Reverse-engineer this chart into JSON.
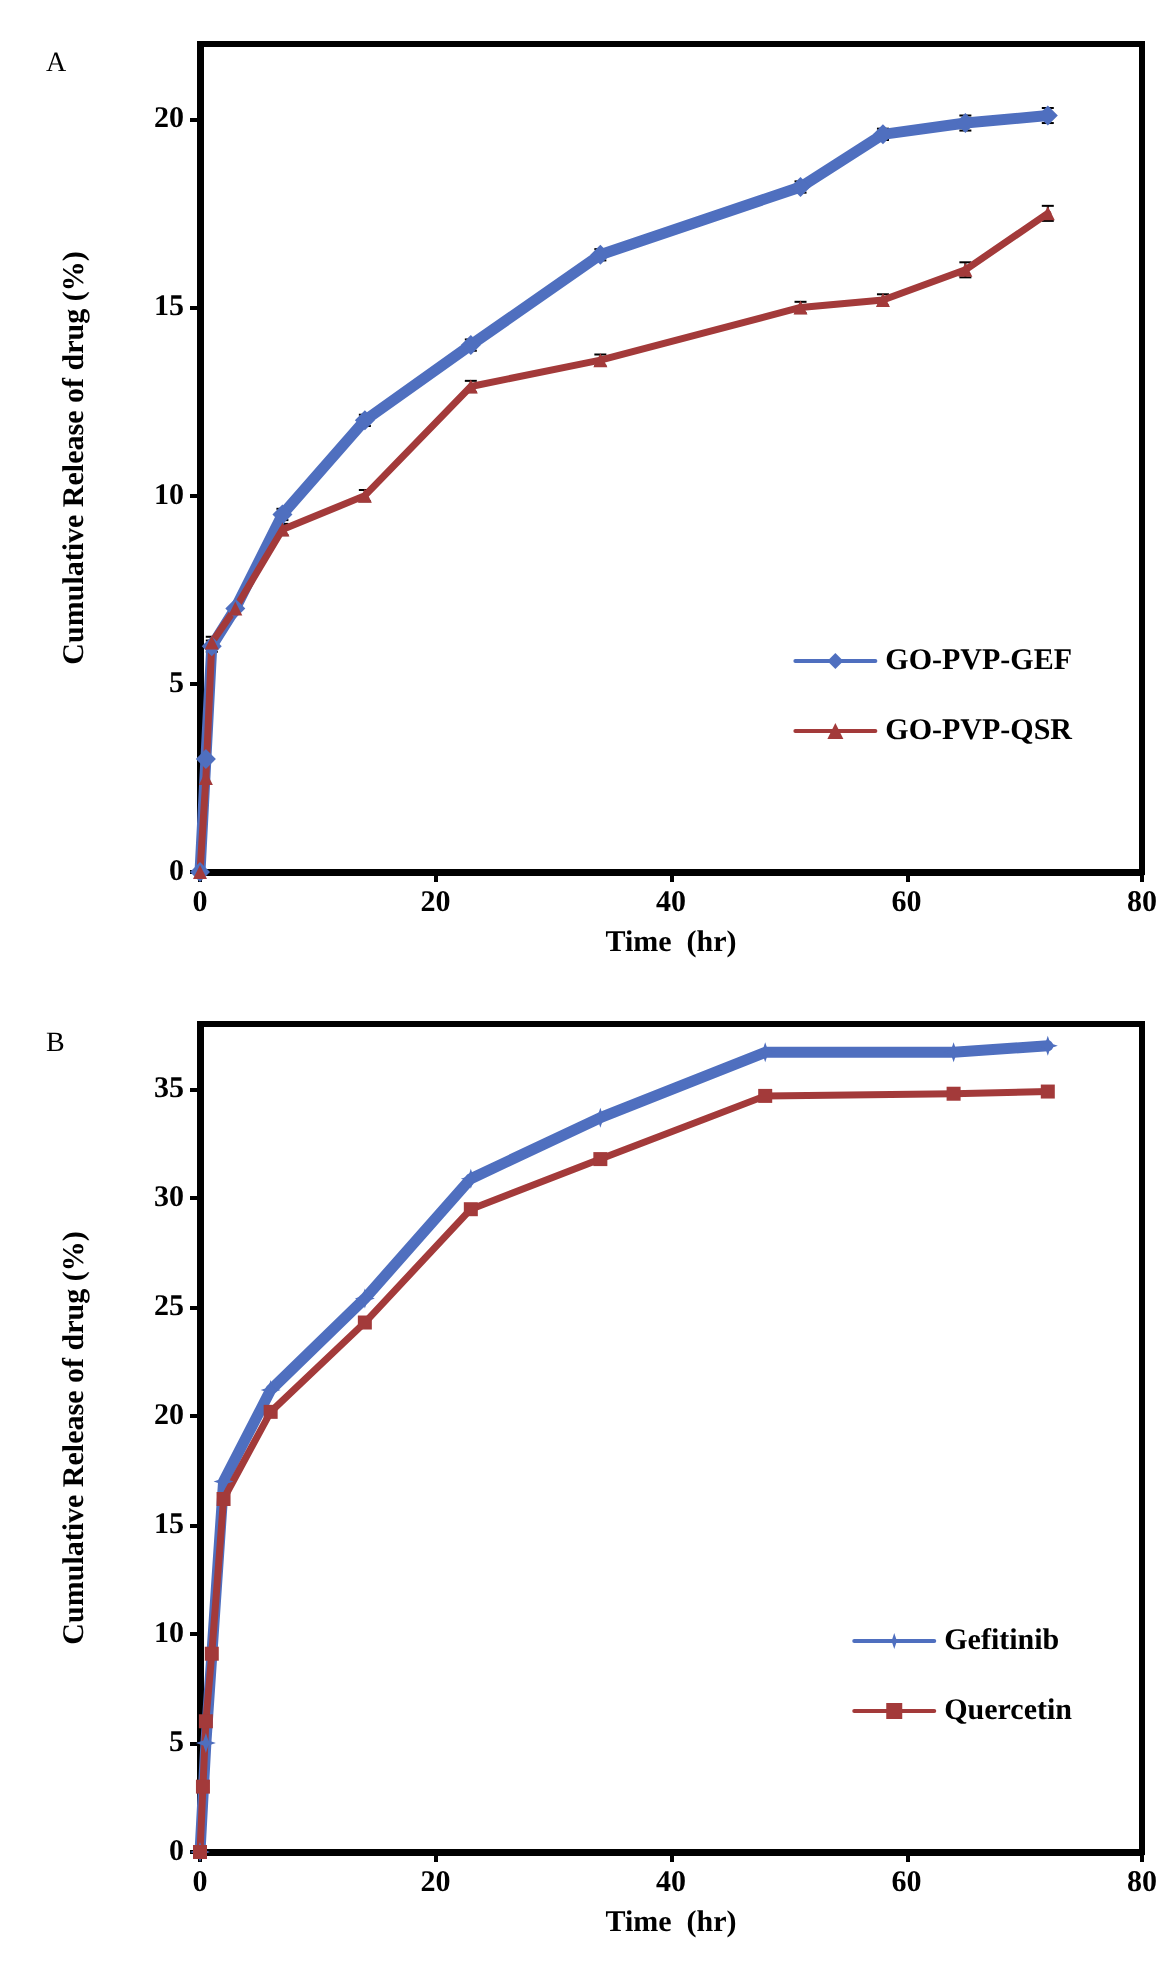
{
  "chart_data": [
    {
      "type": "line",
      "title": "A",
      "xlabel": "Time  (hr)",
      "ylabel": "Cumulative Release of drug (%)",
      "xlim": [
        0,
        80
      ],
      "xticks": [
        0,
        20,
        40,
        60,
        80
      ],
      "ylim": [
        0,
        22
      ],
      "yticks": [
        0,
        5,
        10,
        15,
        20
      ],
      "legend": "bottom right",
      "grid": false,
      "series": [
        {
          "name": "GO-PVP-GEF",
          "color": "#4f6fbf",
          "marker": "diamond",
          "x": [
            0,
            0.5,
            1,
            3,
            7,
            14,
            23,
            34,
            51,
            58,
            65,
            72
          ],
          "values": [
            0,
            3,
            6,
            7,
            9.5,
            12,
            14,
            16.4,
            18.2,
            19.6,
            19.9,
            20.1
          ],
          "errors": [
            null,
            null,
            0.15,
            null,
            0.15,
            0.15,
            0.15,
            0.15,
            0.15,
            0.15,
            0.2,
            0.2
          ]
        },
        {
          "name": "GO-PVP-QSR",
          "color": "#a33a3a",
          "marker": "triangle",
          "x": [
            0,
            0.5,
            1,
            3,
            7,
            14,
            23,
            34,
            51,
            58,
            65,
            72
          ],
          "values": [
            0,
            2.5,
            6.1,
            7,
            9.1,
            10,
            12.9,
            13.6,
            15,
            15.2,
            16,
            17.5
          ],
          "errors": [
            null,
            null,
            0.15,
            null,
            0.15,
            0.15,
            0.15,
            0.15,
            0.15,
            0.15,
            0.2,
            0.2
          ]
        }
      ]
    },
    {
      "type": "line",
      "title": "B",
      "xlabel": "Time  (hr)",
      "ylabel": "Cumulative Release of drug (%)",
      "xlim": [
        0,
        80
      ],
      "xticks": [
        0,
        20,
        40,
        60,
        80
      ],
      "ylim": [
        0,
        38
      ],
      "yticks": [
        0,
        5,
        10,
        15,
        20,
        25,
        30,
        35
      ],
      "legend": "bottom right",
      "grid": false,
      "series": [
        {
          "name": "Gefitinib",
          "color": "#4f6fbf",
          "marker": "cross",
          "x": [
            0,
            0.5,
            2,
            6,
            14,
            23,
            34,
            48,
            64,
            72
          ],
          "values": [
            0,
            5,
            17,
            21.2,
            25.4,
            30.9,
            33.7,
            36.7,
            36.7,
            37
          ]
        },
        {
          "name": "Quercetin",
          "color": "#a33a3a",
          "marker": "square",
          "x": [
            0,
            0.25,
            0.5,
            1,
            2,
            6,
            14,
            23,
            34,
            48,
            64,
            72
          ],
          "values": [
            0,
            3,
            6,
            9.1,
            16.2,
            20.2,
            24.3,
            29.5,
            31.8,
            34.7,
            34.8,
            34.9
          ]
        }
      ]
    }
  ]
}
